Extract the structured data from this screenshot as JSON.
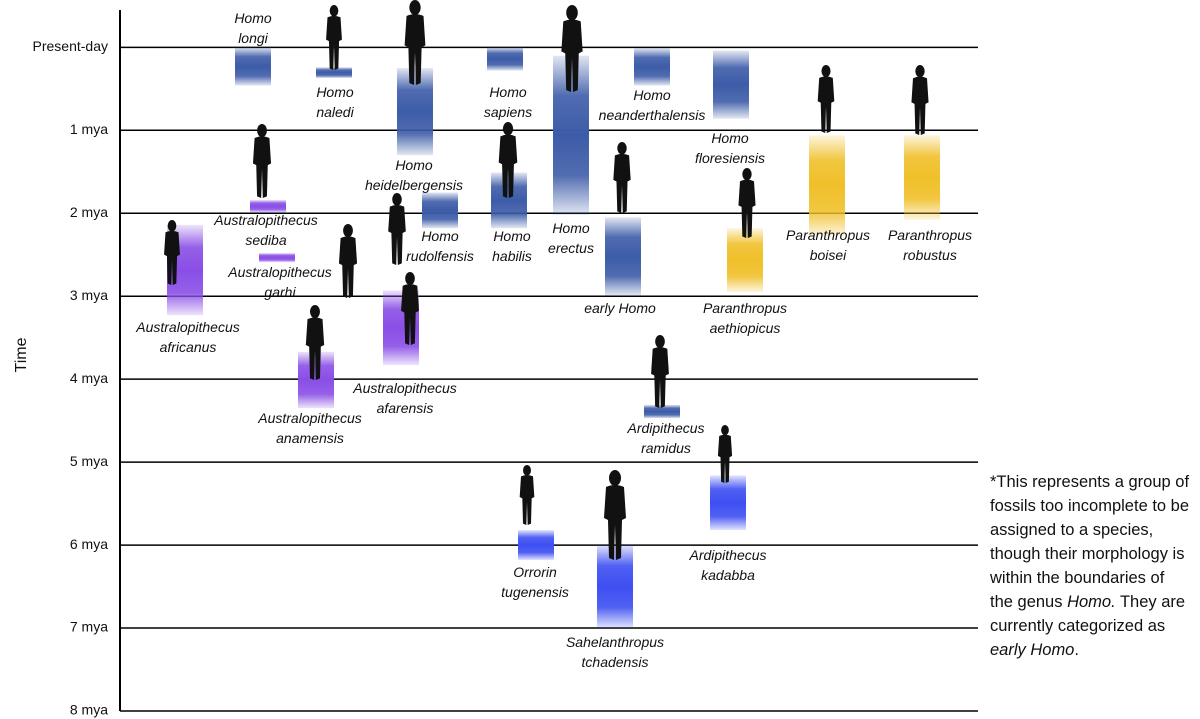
{
  "chart_data": {
    "type": "range-bar",
    "ylabel": "Time",
    "ylim": [
      -0.45,
      8
    ],
    "yticks": [
      {
        "value": 0,
        "label": "Present-day"
      },
      {
        "value": 1,
        "label": "1 mya"
      },
      {
        "value": 2,
        "label": "2 mya"
      },
      {
        "value": 3,
        "label": "3 mya"
      },
      {
        "value": 4,
        "label": "4 mya"
      },
      {
        "value": 5,
        "label": "5 mya"
      },
      {
        "value": 6,
        "label": "6 mya"
      },
      {
        "value": 7,
        "label": "7 mya"
      },
      {
        "value": 8,
        "label": "8 mya"
      }
    ],
    "grid": true,
    "categories": [
      "Homo longi",
      "Homo naledi",
      "Homo heidelbergensis",
      "Homo sapiens",
      "Homo erectus",
      "Homo neanderthalensis",
      "Homo floresiensis",
      "Paranthropus boisei",
      "Paranthropus robustus",
      "Australopithecus sediba",
      "Homo rudolfensis",
      "Homo habilis",
      "early Homo",
      "Paranthropus aethiopicus",
      "Australopithecus garhi",
      "Australopithecus africanus",
      "Australopithecus afarensis",
      "Australopithecus anamensis",
      "Ardipithecus ramidus",
      "Ardipithecus kadabba",
      "Orrorin tugenensis",
      "Sahelanthropus tchadensis"
    ],
    "values": [
      [
        0.46,
        0.0
      ],
      [
        0.37,
        0.24
      ],
      [
        1.3,
        0.25
      ],
      [
        0.28,
        0.0
      ],
      [
        2.02,
        0.1
      ],
      [
        0.46,
        0.01
      ],
      [
        0.86,
        0.04
      ],
      [
        2.27,
        1.06
      ],
      [
        2.08,
        1.06
      ],
      [
        1.99,
        1.84
      ],
      [
        2.18,
        1.75
      ],
      [
        2.18,
        1.51
      ],
      [
        2.99,
        2.05
      ],
      [
        2.95,
        2.18
      ],
      [
        2.59,
        2.48
      ],
      [
        3.23,
        2.14
      ],
      [
        3.83,
        2.93
      ],
      [
        4.35,
        3.67
      ],
      [
        4.47,
        4.31
      ],
      [
        5.82,
        5.16
      ],
      [
        6.18,
        5.82
      ],
      [
        7.0,
        6.0
      ]
    ],
    "colors": [
      "#3d5ca8",
      "#3d5ca8",
      "#3d5ca8",
      "#3d5ca8",
      "#3d5ca8",
      "#3d5ca8",
      "#3d5ca8",
      "#f0c02a",
      "#f0c02a",
      "#8a4ee6",
      "#3d5ca8",
      "#3d5ca8",
      "#3d5ca8",
      "#f0c02a",
      "#8a4ee6",
      "#8a4ee6",
      "#8a4ee6",
      "#8a4ee6",
      "#3d5ca8",
      "#3d4ff2",
      "#3d4ff2",
      "#3d4ff2"
    ],
    "note": [
      "*This represents a group of fossils too incomplete to be assigned to a species, though their morphology is within the boundaries of the genus ",
      "Homo.",
      " They are currently categorized as ",
      "early Homo",
      "."
    ]
  }
}
